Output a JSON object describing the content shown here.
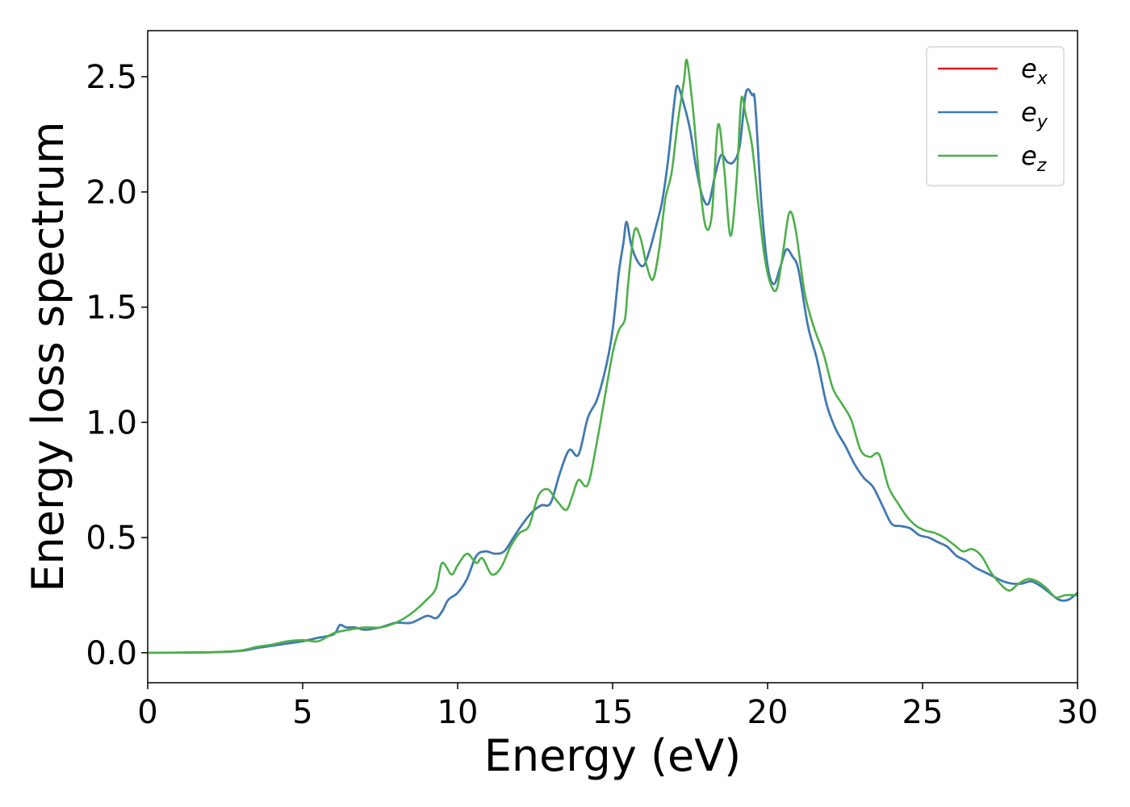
{
  "chart_data": {
    "type": "line",
    "xlabel": "Energy (eV)",
    "ylabel": "Energy loss spectrum",
    "xlim": [
      0,
      30
    ],
    "ylim": [
      -0.13,
      2.7
    ],
    "xticks": [
      0,
      5,
      10,
      15,
      20,
      25,
      30
    ],
    "yticks": [
      0.0,
      0.5,
      1.0,
      1.5,
      2.0,
      2.5
    ],
    "xtick_labels": [
      "0",
      "5",
      "10",
      "15",
      "20",
      "25",
      "30"
    ],
    "ytick_labels": [
      "0.0",
      "0.5",
      "1.0",
      "1.5",
      "2.0",
      "2.5"
    ],
    "grid": false,
    "legend_position": "top-right",
    "series": [
      {
        "name": "e",
        "subscript": "x",
        "color": "#e41a1c",
        "x": [
          0,
          2,
          3,
          3.5,
          4,
          4.5,
          5,
          5.5,
          6,
          6.2,
          6.4,
          6.7,
          7,
          7.5,
          8,
          8.5,
          9,
          9.3,
          9.5,
          9.7,
          10,
          10.3,
          10.6,
          10.9,
          11.2,
          11.5,
          11.8,
          12.1,
          12.4,
          12.7,
          13,
          13.3,
          13.6,
          13.9,
          14.2,
          14.5,
          14.8,
          15,
          15.2,
          15.35,
          15.45,
          15.6,
          15.8,
          16,
          16.2,
          16.4,
          16.6,
          16.8,
          17,
          17.1,
          17.3,
          17.5,
          17.7,
          17.9,
          18.1,
          18.3,
          18.5,
          18.7,
          18.9,
          19.1,
          19.3,
          19.5,
          19.6,
          19.8,
          20,
          20.2,
          20.4,
          20.6,
          20.8,
          21,
          21.3,
          21.6,
          21.9,
          22.2,
          22.5,
          22.8,
          23.1,
          23.4,
          23.7,
          24,
          24.3,
          24.6,
          24.9,
          25.2,
          25.5,
          25.8,
          26.1,
          26.4,
          26.7,
          27,
          27.3,
          27.6,
          27.9,
          28.2,
          28.5,
          28.8,
          29.1,
          29.4,
          29.7,
          30
        ],
        "y": [
          0,
          0.002,
          0.008,
          0.02,
          0.03,
          0.04,
          0.05,
          0.065,
          0.08,
          0.12,
          0.11,
          0.11,
          0.1,
          0.11,
          0.13,
          0.13,
          0.16,
          0.15,
          0.18,
          0.23,
          0.26,
          0.32,
          0.42,
          0.44,
          0.43,
          0.44,
          0.5,
          0.56,
          0.61,
          0.64,
          0.65,
          0.78,
          0.88,
          0.86,
          1.02,
          1.1,
          1.25,
          1.4,
          1.65,
          1.78,
          1.87,
          1.77,
          1.7,
          1.68,
          1.75,
          1.85,
          1.96,
          2.15,
          2.4,
          2.46,
          2.38,
          2.27,
          2.1,
          1.98,
          1.95,
          2.07,
          2.16,
          2.13,
          2.13,
          2.2,
          2.43,
          2.42,
          2.38,
          1.95,
          1.68,
          1.6,
          1.67,
          1.75,
          1.72,
          1.66,
          1.42,
          1.27,
          1.08,
          0.97,
          0.9,
          0.82,
          0.76,
          0.72,
          0.64,
          0.56,
          0.55,
          0.54,
          0.51,
          0.5,
          0.48,
          0.46,
          0.42,
          0.4,
          0.37,
          0.35,
          0.33,
          0.31,
          0.3,
          0.3,
          0.31,
          0.29,
          0.26,
          0.23,
          0.23,
          0.26
        ]
      },
      {
        "name": "e",
        "subscript": "y",
        "color": "#377eb8",
        "x": [
          0,
          2,
          3,
          3.5,
          4,
          4.5,
          5,
          5.5,
          6,
          6.2,
          6.4,
          6.7,
          7,
          7.5,
          8,
          8.5,
          9,
          9.3,
          9.5,
          9.7,
          10,
          10.3,
          10.6,
          10.9,
          11.2,
          11.5,
          11.8,
          12.1,
          12.4,
          12.7,
          13,
          13.3,
          13.6,
          13.9,
          14.2,
          14.5,
          14.8,
          15,
          15.2,
          15.35,
          15.45,
          15.6,
          15.8,
          16,
          16.2,
          16.4,
          16.6,
          16.8,
          17,
          17.1,
          17.3,
          17.5,
          17.7,
          17.9,
          18.1,
          18.3,
          18.5,
          18.7,
          18.9,
          19.1,
          19.3,
          19.5,
          19.6,
          19.8,
          20,
          20.2,
          20.4,
          20.6,
          20.8,
          21,
          21.3,
          21.6,
          21.9,
          22.2,
          22.5,
          22.8,
          23.1,
          23.4,
          23.7,
          24,
          24.3,
          24.6,
          24.9,
          25.2,
          25.5,
          25.8,
          26.1,
          26.4,
          26.7,
          27,
          27.3,
          27.6,
          27.9,
          28.2,
          28.5,
          28.8,
          29.1,
          29.4,
          29.7,
          30
        ],
        "y": [
          0,
          0.002,
          0.008,
          0.02,
          0.03,
          0.04,
          0.05,
          0.065,
          0.08,
          0.12,
          0.11,
          0.11,
          0.1,
          0.11,
          0.13,
          0.13,
          0.16,
          0.15,
          0.18,
          0.23,
          0.26,
          0.32,
          0.42,
          0.44,
          0.43,
          0.44,
          0.5,
          0.56,
          0.61,
          0.64,
          0.65,
          0.78,
          0.88,
          0.86,
          1.02,
          1.1,
          1.25,
          1.4,
          1.65,
          1.78,
          1.87,
          1.77,
          1.7,
          1.68,
          1.75,
          1.85,
          1.96,
          2.15,
          2.4,
          2.46,
          2.38,
          2.27,
          2.1,
          1.98,
          1.95,
          2.07,
          2.16,
          2.13,
          2.13,
          2.2,
          2.43,
          2.42,
          2.38,
          1.95,
          1.68,
          1.6,
          1.67,
          1.75,
          1.72,
          1.66,
          1.42,
          1.27,
          1.08,
          0.97,
          0.9,
          0.82,
          0.76,
          0.72,
          0.64,
          0.56,
          0.55,
          0.54,
          0.51,
          0.5,
          0.48,
          0.46,
          0.42,
          0.4,
          0.37,
          0.35,
          0.33,
          0.31,
          0.3,
          0.3,
          0.31,
          0.29,
          0.26,
          0.23,
          0.23,
          0.26
        ]
      },
      {
        "name": "e",
        "subscript": "z",
        "color": "#4daf4a",
        "x": [
          0,
          2,
          3,
          3.5,
          4,
          4.5,
          5,
          5.5,
          6,
          6.5,
          7,
          7.5,
          8,
          8.5,
          9,
          9.3,
          9.5,
          9.8,
          10,
          10.3,
          10.6,
          10.8,
          11.1,
          11.4,
          11.7,
          12,
          12.3,
          12.6,
          12.9,
          13.2,
          13.5,
          13.7,
          13.9,
          14.2,
          14.5,
          14.8,
          15,
          15.2,
          15.4,
          15.5,
          15.7,
          15.9,
          16.1,
          16.3,
          16.5,
          16.7,
          16.9,
          17.1,
          17.3,
          17.4,
          17.6,
          17.8,
          18,
          18.2,
          18.4,
          18.6,
          18.8,
          19,
          19.15,
          19.3,
          19.5,
          19.7,
          19.9,
          20.1,
          20.3,
          20.5,
          20.7,
          20.9,
          21.2,
          21.5,
          21.8,
          22.1,
          22.4,
          22.7,
          23,
          23.3,
          23.6,
          23.9,
          24.2,
          24.5,
          24.8,
          25.1,
          25.4,
          25.7,
          26,
          26.3,
          26.6,
          26.9,
          27.2,
          27.5,
          27.8,
          28.1,
          28.4,
          28.7,
          29,
          29.3,
          29.6,
          30
        ],
        "y": [
          0,
          0.002,
          0.01,
          0.025,
          0.035,
          0.05,
          0.055,
          0.05,
          0.085,
          0.1,
          0.11,
          0.11,
          0.13,
          0.17,
          0.23,
          0.28,
          0.39,
          0.34,
          0.38,
          0.43,
          0.39,
          0.41,
          0.34,
          0.37,
          0.46,
          0.52,
          0.55,
          0.68,
          0.71,
          0.66,
          0.62,
          0.68,
          0.75,
          0.73,
          0.92,
          1.15,
          1.3,
          1.4,
          1.45,
          1.6,
          1.83,
          1.8,
          1.68,
          1.62,
          1.75,
          1.97,
          2.08,
          2.3,
          2.48,
          2.57,
          2.35,
          2.05,
          1.85,
          1.9,
          2.29,
          2.1,
          1.81,
          2.05,
          2.4,
          2.33,
          2.2,
          1.95,
          1.72,
          1.6,
          1.58,
          1.74,
          1.91,
          1.84,
          1.56,
          1.41,
          1.3,
          1.15,
          1.08,
          1.01,
          0.88,
          0.85,
          0.86,
          0.72,
          0.65,
          0.59,
          0.55,
          0.53,
          0.52,
          0.5,
          0.47,
          0.44,
          0.45,
          0.42,
          0.35,
          0.3,
          0.27,
          0.3,
          0.32,
          0.31,
          0.28,
          0.24,
          0.25,
          0.25
        ]
      }
    ]
  }
}
